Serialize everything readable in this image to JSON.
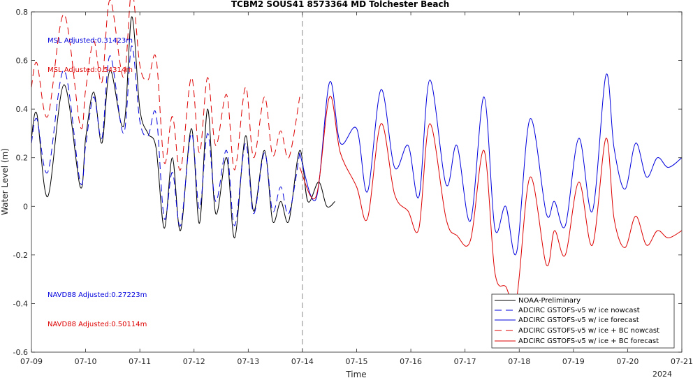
{
  "chart_data": {
    "type": "line",
    "title": "TCBM2 SOUS41 8573364 MD Tolchester Beach",
    "xlabel": "Time",
    "ylabel": "Water Level (m)",
    "xlim": [
      "07-09",
      "07-21"
    ],
    "ylim": [
      -0.6,
      0.8
    ],
    "x_ticks": [
      "07-09",
      "07-10",
      "07-11",
      "07-12",
      "07-13",
      "07-14",
      "07-15",
      "07-16",
      "07-17",
      "07-18",
      "07-19",
      "07-20",
      "07-21"
    ],
    "x_year_label": "2024",
    "y_ticks": [
      0.8,
      0.6,
      0.4,
      0.2,
      0,
      -0.2,
      -0.4,
      -0.6
    ],
    "y_tick_labels": [
      "0.8",
      "0.6",
      "0.4",
      "0.2",
      "0",
      "-0.2",
      "-0.4",
      "-0.6"
    ],
    "nowcast_divider": "07-14",
    "grid": false,
    "legend_position": "bottom-right",
    "annotations": [
      {
        "text": "MSL Adjusted:0.31423m",
        "color": "#0000dd"
      },
      {
        "text": "MSL Adjusted:0.54314m",
        "color": "#dd0000"
      },
      {
        "text": "NAVD88 Adjusted:0.27223m",
        "color": "#0000dd"
      },
      {
        "text": "NAVD88 Adjusted:0.50114m",
        "color": "#dd0000"
      }
    ],
    "series": [
      {
        "name": "NOAA-Preliminary",
        "color": "#000000",
        "dash": "solid",
        "x": [
          0,
          0.1,
          0.3,
          0.6,
          0.9,
          1.0,
          1.15,
          1.3,
          1.45,
          1.7,
          1.85,
          2.0,
          2.15,
          2.3,
          2.45,
          2.6,
          2.75,
          2.95,
          3.1,
          3.25,
          3.4,
          3.6,
          3.75,
          3.95,
          4.1,
          4.3,
          4.45,
          4.6,
          4.75,
          4.95,
          5.1,
          5.3,
          5.45,
          5.6
        ],
        "y": [
          0.28,
          0.38,
          0.04,
          0.5,
          0.08,
          0.28,
          0.47,
          0.26,
          0.56,
          0.33,
          0.78,
          0.4,
          0.3,
          0.24,
          -0.09,
          0.2,
          -0.1,
          0.32,
          -0.07,
          0.4,
          -0.03,
          0.2,
          -0.13,
          0.29,
          -0.02,
          0.23,
          -0.06,
          0.02,
          -0.06,
          0.23,
          0.02,
          0.1,
          0.0,
          0.02
        ]
      },
      {
        "name": "ADCIRC GSTOFS-v5 w/ ice nowcast",
        "color": "#0000dd",
        "dash": "dashed",
        "x": [
          0,
          0.1,
          0.3,
          0.6,
          0.9,
          1.0,
          1.15,
          1.3,
          1.45,
          1.7,
          1.85,
          2.0,
          2.15,
          2.3,
          2.45,
          2.6,
          2.75,
          2.95,
          3.1,
          3.25,
          3.4,
          3.6,
          3.75,
          3.95,
          4.1,
          4.3,
          4.45,
          4.6,
          4.75,
          4.95
        ],
        "y": [
          0.26,
          0.36,
          0.14,
          0.56,
          0.1,
          0.25,
          0.45,
          0.28,
          0.62,
          0.3,
          0.66,
          0.35,
          0.29,
          0.38,
          -0.05,
          0.14,
          -0.08,
          0.3,
          -0.01,
          0.3,
          0.02,
          0.23,
          -0.08,
          0.26,
          -0.03,
          0.22,
          -0.02,
          0.08,
          -0.03,
          0.22
        ]
      },
      {
        "name": "ADCIRC GSTOFS-v5 w/ ice forecast",
        "color": "#0000dd",
        "dash": "solid",
        "x": [
          4.95,
          5.25,
          5.5,
          5.7,
          6.0,
          6.2,
          6.45,
          6.7,
          6.95,
          7.15,
          7.35,
          7.65,
          7.85,
          8.1,
          8.35,
          8.55,
          8.75,
          8.95,
          9.2,
          9.5,
          9.65,
          9.85,
          10.1,
          10.35,
          10.6,
          10.75,
          10.95,
          11.15,
          11.35,
          11.55,
          11.75,
          12.0
        ],
        "y": [
          0.22,
          0.03,
          0.51,
          0.26,
          0.32,
          0.06,
          0.48,
          0.16,
          0.25,
          0.04,
          0.52,
          0.09,
          0.25,
          -0.06,
          0.45,
          -0.09,
          0.0,
          -0.19,
          0.36,
          -0.03,
          0.02,
          -0.08,
          0.28,
          -0.02,
          0.54,
          0.24,
          0.07,
          0.26,
          0.12,
          0.2,
          0.16,
          0.2
        ]
      },
      {
        "name": "ADCIRC GSTOFS-v5 w/ ice + BC nowcast",
        "color": "#dd0000",
        "dash": "dashed",
        "x": [
          0,
          0.1,
          0.3,
          0.6,
          0.9,
          1.0,
          1.15,
          1.3,
          1.45,
          1.7,
          1.85,
          2.0,
          2.15,
          2.3,
          2.45,
          2.6,
          2.75,
          2.95,
          3.1,
          3.25,
          3.4,
          3.6,
          3.75,
          3.95,
          4.1,
          4.3,
          4.45,
          4.6,
          4.75,
          4.95
        ],
        "y": [
          0.49,
          0.59,
          0.37,
          0.79,
          0.33,
          0.48,
          0.68,
          0.51,
          0.85,
          0.53,
          0.89,
          0.58,
          0.52,
          0.61,
          0.18,
          0.37,
          0.15,
          0.53,
          0.22,
          0.53,
          0.25,
          0.46,
          0.15,
          0.49,
          0.2,
          0.45,
          0.21,
          0.31,
          0.2,
          0.45
        ]
      },
      {
        "name": "ADCIRC GSTOFS-v5 w/ ice + BC forecast",
        "color": "#dd0000",
        "dash": "solid",
        "x": [
          4.95,
          5.25,
          5.5,
          5.7,
          6.0,
          6.2,
          6.45,
          6.7,
          6.95,
          7.15,
          7.35,
          7.65,
          7.85,
          8.1,
          8.35,
          8.55,
          8.75,
          8.95,
          9.2,
          9.5,
          9.65,
          9.85,
          10.1,
          10.35,
          10.6,
          10.75,
          10.95,
          11.15,
          11.35,
          11.55,
          11.75,
          12.0
        ],
        "y": [
          0.16,
          0.04,
          0.45,
          0.22,
          0.08,
          -0.05,
          0.34,
          0.05,
          -0.02,
          -0.09,
          0.34,
          -0.05,
          -0.12,
          -0.14,
          0.23,
          -0.27,
          -0.33,
          -0.38,
          0.12,
          -0.24,
          -0.1,
          -0.2,
          0.1,
          -0.16,
          0.28,
          -0.05,
          -0.17,
          -0.04,
          -0.16,
          -0.1,
          -0.13,
          -0.1
        ]
      }
    ]
  }
}
